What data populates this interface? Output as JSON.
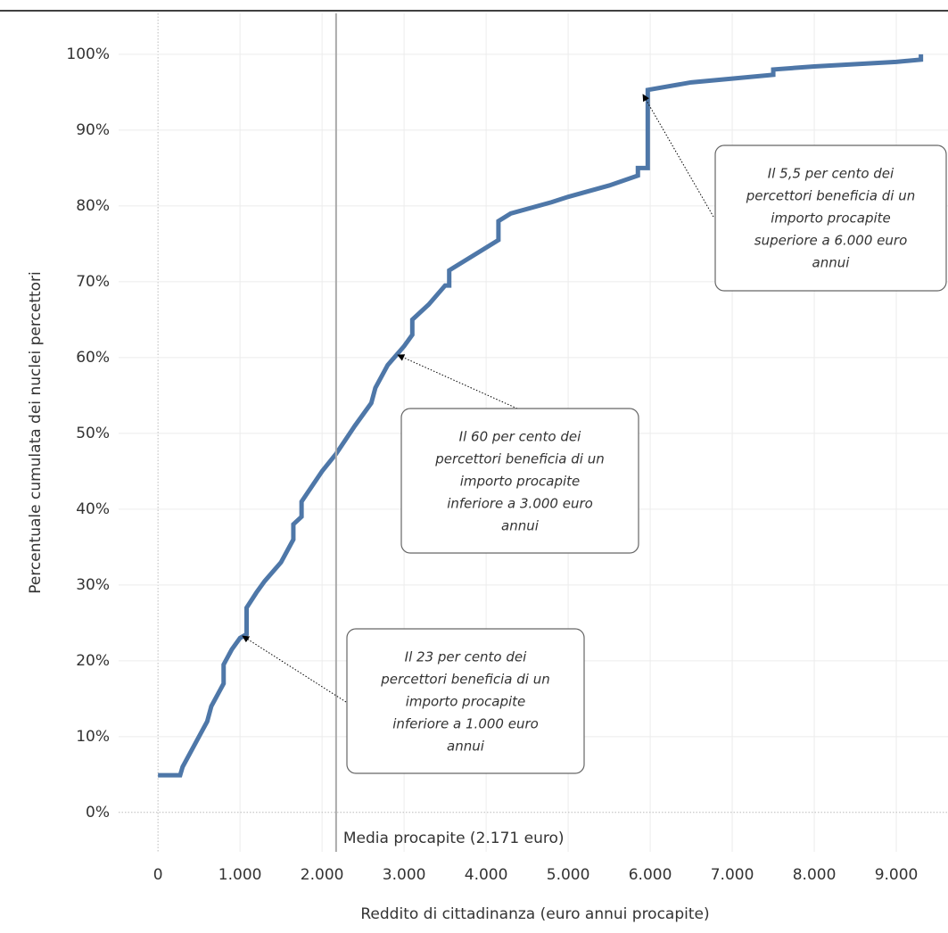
{
  "chart_data": {
    "type": "line",
    "x_label": "Reddito di cittadinanza (euro annui procapite)",
    "y_label": "Percentuale cumulata dei nuclei percettori",
    "x": [
      0,
      270,
      300,
      400,
      500,
      600,
      650,
      800,
      800,
      900,
      1000,
      1080,
      1080,
      1200,
      1300,
      1500,
      1650,
      1650,
      1750,
      1750,
      2000,
      2171,
      2400,
      2600,
      2650,
      2800,
      3000,
      3100,
      3100,
      3300,
      3500,
      3550,
      3550,
      4000,
      4150,
      4150,
      4300,
      4800,
      5000,
      5500,
      5850,
      5850,
      5970,
      5970,
      6500,
      7000,
      7500,
      7500,
      8000,
      9000,
      9300,
      9300
    ],
    "series": [
      {
        "color": "#4e77a8",
        "values": [
          4.9,
          4.9,
          6,
          8,
          10,
          12,
          14,
          17,
          19.5,
          21.5,
          23,
          23.5,
          27,
          29,
          30.5,
          33,
          36,
          38,
          39,
          41,
          45,
          47.3,
          51,
          54,
          56,
          59,
          61.5,
          63,
          65,
          67,
          69.5,
          69.5,
          71.5,
          74.5,
          75.5,
          78,
          79,
          80.5,
          81.2,
          82.7,
          84,
          85,
          85,
          95.3,
          96.3,
          96.8,
          97.3,
          98,
          98.4,
          99,
          99.3,
          100
        ]
      }
    ],
    "xlim": [
      -480,
      9630
    ],
    "ylim": [
      -5.2,
      105.4
    ],
    "xticks": [
      0,
      {
        "value": 1000,
        "label": "1.000"
      },
      {
        "value": 2000,
        "label": "2.000"
      },
      {
        "value": 3000,
        "label": "3.000"
      },
      {
        "value": 4000,
        "label": "4.000"
      },
      {
        "value": 5000,
        "label": "5.000"
      },
      {
        "value": 6000,
        "label": "6.000"
      },
      {
        "value": 7000,
        "label": "7.000"
      },
      {
        "value": 8000,
        "label": "8.000"
      },
      {
        "value": 9000,
        "label": "9.000"
      }
    ],
    "yticks": [
      {
        "value": 0,
        "label": "0%"
      },
      {
        "value": 10,
        "label": "10%"
      },
      {
        "value": 20,
        "label": "20%"
      },
      {
        "value": 30,
        "label": "30%"
      },
      {
        "value": 40,
        "label": "40%"
      },
      {
        "value": 50,
        "label": "50%"
      },
      {
        "value": 60,
        "label": "60%"
      },
      {
        "value": 70,
        "label": "70%"
      },
      {
        "value": 80,
        "label": "80%"
      },
      {
        "value": 90,
        "label": "90%"
      },
      {
        "value": 100,
        "label": "100%"
      }
    ],
    "grid": true,
    "reference_line": {
      "value": 2171,
      "label": "Media procapite (2.171 euro)"
    },
    "annotations": [
      {
        "lines": [
          "Il 23 per cento dei",
          "percettori beneficia di un",
          "importo procapite",
          "inferiore a 1.000 euro",
          "annui"
        ]
      },
      {
        "lines": [
          "Il 60 per cento dei",
          "percettori beneficia di un",
          "importo procapite",
          "inferiore a 3.000 euro",
          "annui"
        ]
      },
      {
        "lines": [
          "Il 5,5 per cento dei",
          "percettori beneficia di un",
          "importo procapite",
          "superiore a 6.000 euro",
          "annui"
        ]
      }
    ]
  }
}
